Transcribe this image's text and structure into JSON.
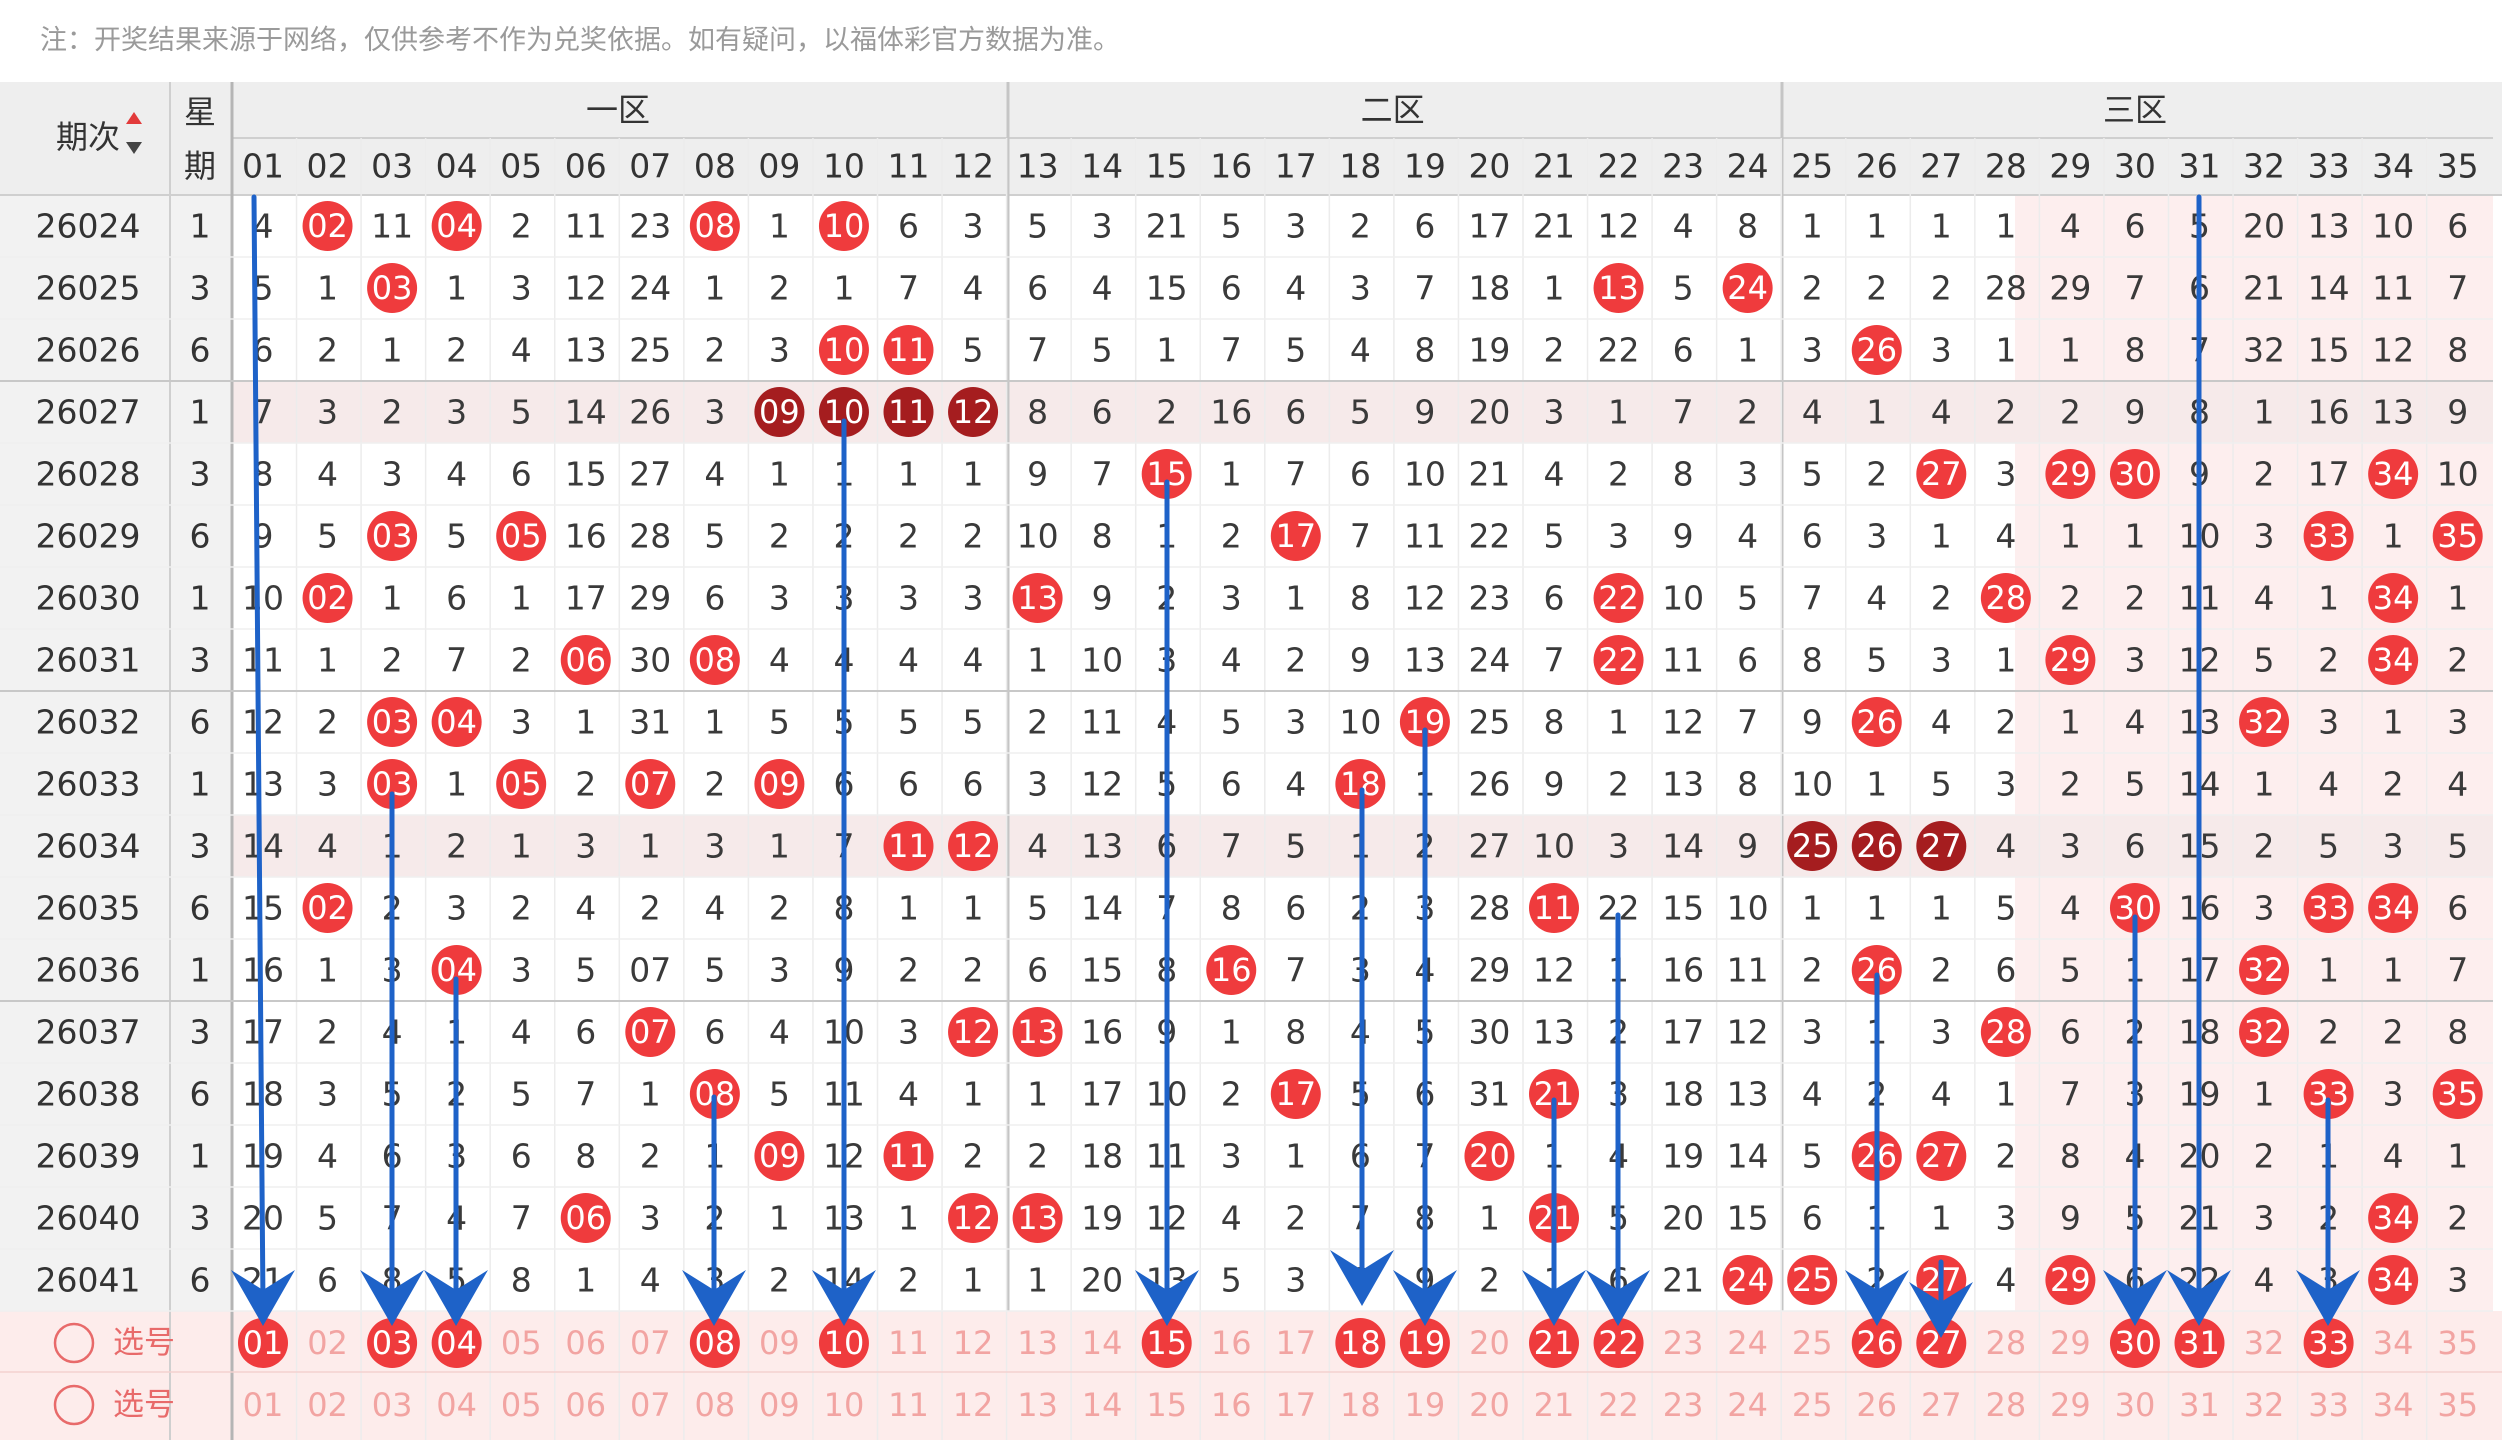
{
  "note": "注：开奖结果来源于网络，仅供参考不作为兑奖依据。如有疑问，以福体彩官方数据为准。",
  "header": {
    "period_label": "期次",
    "week_label": "星期",
    "zones": [
      "一区",
      "二区",
      "三区"
    ],
    "columns": [
      "01",
      "02",
      "03",
      "04",
      "05",
      "06",
      "07",
      "08",
      "09",
      "10",
      "11",
      "12",
      "13",
      "14",
      "15",
      "16",
      "17",
      "18",
      "19",
      "20",
      "21",
      "22",
      "23",
      "24",
      "25",
      "26",
      "27",
      "28",
      "29",
      "30",
      "31",
      "32",
      "33",
      "34",
      "35"
    ]
  },
  "colors": {
    "ball": "#ef3b3d",
    "ball_dark": "#a51d1f",
    "arrow": "#1e62c8",
    "miss_text": "#3a3a3a",
    "header_bg": "#eeeeee",
    "zone3_band": "#fdeeee",
    "select_bg": "#fdeceb"
  },
  "rows": [
    {
      "period": "26024",
      "week": "1",
      "cells": [
        "4",
        "02",
        "11",
        "04",
        "2",
        "11",
        "23",
        "08",
        "1",
        "10",
        "6",
        "3",
        "5",
        "3",
        "21",
        "5",
        "3",
        "2",
        "6",
        "17",
        "21",
        "12",
        "4",
        "8",
        "1",
        "1",
        "1",
        "1",
        "4",
        "6",
        "5",
        "20",
        "13",
        "10",
        "6"
      ]
    },
    {
      "period": "26025",
      "week": "3",
      "cells": [
        "5",
        "1",
        "03",
        "1",
        "3",
        "12",
        "24",
        "1",
        "2",
        "1",
        "7",
        "4",
        "6",
        "4",
        "15",
        "6",
        "4",
        "3",
        "7",
        "18",
        "1",
        "13",
        "5",
        "24",
        "2",
        "2",
        "2",
        "28",
        "29",
        "7",
        "6",
        "21",
        "14",
        "11",
        "7"
      ]
    },
    {
      "period": "26026",
      "week": "6",
      "cells": [
        "6",
        "2",
        "1",
        "2",
        "4",
        "13",
        "25",
        "2",
        "3",
        "10",
        "11",
        "5",
        "7",
        "5",
        "1",
        "7",
        "5",
        "4",
        "8",
        "19",
        "2",
        "22",
        "6",
        "1",
        "3",
        "26",
        "3",
        "1",
        "1",
        "8",
        "7",
        "32",
        "15",
        "12",
        "8"
      ]
    },
    {
      "period": "26027",
      "week": "1",
      "cells": [
        "7",
        "3",
        "2",
        "3",
        "5",
        "14",
        "26",
        "3",
        "09",
        "10",
        "11",
        "12",
        "8",
        "6",
        "2",
        "16",
        "6",
        "5",
        "9",
        "20",
        "3",
        "1",
        "7",
        "2",
        "4",
        "1",
        "4",
        "2",
        "2",
        "9",
        "8",
        "1",
        "16",
        "13",
        "9"
      ]
    },
    {
      "period": "26028",
      "week": "3",
      "cells": [
        "8",
        "4",
        "3",
        "4",
        "6",
        "15",
        "27",
        "4",
        "1",
        "1",
        "1",
        "1",
        "9",
        "7",
        "15",
        "1",
        "7",
        "6",
        "10",
        "21",
        "4",
        "2",
        "8",
        "3",
        "5",
        "2",
        "27",
        "3",
        "29",
        "30",
        "9",
        "2",
        "17",
        "34",
        "10"
      ]
    },
    {
      "period": "26029",
      "week": "6",
      "cells": [
        "9",
        "5",
        "03",
        "5",
        "05",
        "16",
        "28",
        "5",
        "2",
        "2",
        "2",
        "2",
        "10",
        "8",
        "1",
        "2",
        "17",
        "7",
        "11",
        "22",
        "5",
        "3",
        "9",
        "4",
        "6",
        "3",
        "1",
        "4",
        "1",
        "1",
        "10",
        "3",
        "33",
        "1",
        "35"
      ]
    },
    {
      "period": "26030",
      "week": "1",
      "cells": [
        "10",
        "02",
        "1",
        "6",
        "1",
        "17",
        "29",
        "6",
        "3",
        "3",
        "3",
        "3",
        "13",
        "9",
        "2",
        "3",
        "1",
        "8",
        "12",
        "23",
        "6",
        "22",
        "10",
        "5",
        "7",
        "4",
        "2",
        "28",
        "2",
        "2",
        "11",
        "4",
        "1",
        "34",
        "1"
      ]
    },
    {
      "period": "26031",
      "week": "3",
      "cells": [
        "11",
        "1",
        "2",
        "7",
        "2",
        "06",
        "30",
        "08",
        "4",
        "4",
        "4",
        "4",
        "1",
        "10",
        "3",
        "4",
        "2",
        "9",
        "13",
        "24",
        "7",
        "22",
        "11",
        "6",
        "8",
        "5",
        "3",
        "1",
        "29",
        "3",
        "12",
        "5",
        "2",
        "34",
        "2"
      ]
    },
    {
      "period": "26032",
      "week": "6",
      "cells": [
        "12",
        "2",
        "03",
        "04",
        "3",
        "1",
        "31",
        "1",
        "5",
        "5",
        "5",
        "5",
        "2",
        "11",
        "4",
        "5",
        "3",
        "10",
        "19",
        "25",
        "8",
        "1",
        "12",
        "7",
        "9",
        "26",
        "4",
        "2",
        "1",
        "4",
        "13",
        "32",
        "3",
        "1",
        "3"
      ]
    },
    {
      "period": "26033",
      "week": "1",
      "cells": [
        "13",
        "3",
        "03",
        "1",
        "05",
        "2",
        "07",
        "2",
        "09",
        "6",
        "6",
        "6",
        "3",
        "12",
        "5",
        "6",
        "4",
        "18",
        "1",
        "26",
        "9",
        "2",
        "13",
        "8",
        "10",
        "1",
        "5",
        "3",
        "2",
        "5",
        "14",
        "1",
        "4",
        "2",
        "4"
      ]
    },
    {
      "period": "26034",
      "week": "3",
      "cells": [
        "14",
        "4",
        "1",
        "2",
        "1",
        "3",
        "1",
        "3",
        "1",
        "7",
        "11",
        "12",
        "4",
        "13",
        "6",
        "7",
        "5",
        "1",
        "2",
        "27",
        "10",
        "3",
        "14",
        "9",
        "25",
        "26",
        "27",
        "4",
        "3",
        "6",
        "15",
        "2",
        "5",
        "3",
        "5"
      ]
    },
    {
      "period": "26035",
      "week": "6",
      "cells": [
        "15",
        "02",
        "2",
        "3",
        "2",
        "4",
        "2",
        "4",
        "2",
        "8",
        "1",
        "1",
        "5",
        "14",
        "7",
        "8",
        "6",
        "2",
        "3",
        "28",
        "11",
        "22",
        "15",
        "10",
        "1",
        "1",
        "1",
        "5",
        "4",
        "30",
        "16",
        "3",
        "33",
        "34",
        "6"
      ]
    },
    {
      "period": "26036",
      "week": "1",
      "cells": [
        "16",
        "1",
        "3",
        "04",
        "3",
        "5",
        "07",
        "5",
        "3",
        "9",
        "2",
        "2",
        "6",
        "15",
        "8",
        "16",
        "7",
        "3",
        "4",
        "29",
        "12",
        "1",
        "16",
        "11",
        "2",
        "26",
        "2",
        "6",
        "5",
        "1",
        "17",
        "32",
        "1",
        "1",
        "7"
      ]
    },
    {
      "period": "26037",
      "week": "3",
      "cells": [
        "17",
        "2",
        "4",
        "1",
        "4",
        "6",
        "07",
        "6",
        "4",
        "10",
        "3",
        "12",
        "13",
        "16",
        "9",
        "1",
        "8",
        "4",
        "5",
        "30",
        "13",
        "2",
        "17",
        "12",
        "3",
        "1",
        "3",
        "28",
        "6",
        "2",
        "18",
        "32",
        "2",
        "2",
        "8"
      ]
    },
    {
      "period": "26038",
      "week": "6",
      "cells": [
        "18",
        "3",
        "5",
        "2",
        "5",
        "7",
        "1",
        "08",
        "5",
        "11",
        "4",
        "1",
        "1",
        "17",
        "10",
        "2",
        "17",
        "5",
        "6",
        "31",
        "21",
        "3",
        "18",
        "13",
        "4",
        "2",
        "4",
        "1",
        "7",
        "3",
        "19",
        "1",
        "33",
        "3",
        "35"
      ]
    },
    {
      "period": "26039",
      "week": "1",
      "cells": [
        "19",
        "4",
        "6",
        "3",
        "6",
        "8",
        "2",
        "1",
        "09",
        "12",
        "11",
        "2",
        "2",
        "18",
        "11",
        "3",
        "1",
        "6",
        "7",
        "20",
        "1",
        "4",
        "19",
        "14",
        "5",
        "26",
        "27",
        "2",
        "8",
        "4",
        "20",
        "2",
        "1",
        "4",
        "1"
      ]
    },
    {
      "period": "26040",
      "week": "3",
      "cells": [
        "20",
        "5",
        "7",
        "4",
        "7",
        "06",
        "3",
        "2",
        "1",
        "13",
        "1",
        "12",
        "13",
        "19",
        "12",
        "4",
        "2",
        "7",
        "8",
        "1",
        "21",
        "5",
        "20",
        "15",
        "6",
        "1",
        "1",
        "3",
        "9",
        "5",
        "21",
        "3",
        "2",
        "34",
        "2"
      ]
    },
    {
      "period": "26041",
      "week": "6",
      "cells": [
        "21",
        "6",
        "8",
        "5",
        "8",
        "1",
        "4",
        "3",
        "2",
        "14",
        "2",
        "1",
        "1",
        "20",
        "13",
        "5",
        "3",
        "8",
        "9",
        "2",
        "1",
        "6",
        "21",
        "24",
        "25",
        "2",
        "27",
        "4",
        "29",
        "6",
        "22",
        "4",
        "3",
        "34",
        "3"
      ]
    }
  ],
  "hits": [
    [
      1,
      3,
      7,
      9
    ],
    [
      2,
      21,
      23
    ],
    [
      9,
      10,
      25
    ],
    [],
    [
      14,
      26,
      28,
      29,
      33
    ],
    [
      2,
      4,
      16,
      32,
      34
    ],
    [
      1,
      12,
      21,
      27,
      33
    ],
    [
      5,
      7,
      21,
      28,
      33
    ],
    [
      2,
      3,
      18,
      25,
      31
    ],
    [
      2,
      4,
      6,
      8,
      17
    ],
    [
      10,
      11,
      24,
      25,
      26
    ],
    [
      1,
      20,
      29,
      32,
      33
    ],
    [
      3,
      15,
      25,
      31
    ],
    [
      6,
      11,
      12,
      27,
      31
    ],
    [
      7,
      16,
      20,
      32,
      34
    ],
    [
      8,
      10,
      19,
      25,
      26
    ],
    [
      5,
      11,
      12,
      20,
      33
    ],
    [
      23,
      24,
      26,
      28,
      33
    ]
  ],
  "dark_groups": [
    {
      "row": 3,
      "cols": [
        8,
        9,
        10,
        11
      ]
    },
    {
      "row": 10,
      "cols": [
        24,
        25,
        26
      ]
    }
  ],
  "band_rows": [
    3,
    10
  ],
  "select_rows": [
    {
      "label": "选号",
      "selected": [
        "01",
        "03",
        "04",
        "08",
        "10",
        "15",
        "18",
        "19",
        "21",
        "22",
        "26",
        "27",
        "30",
        "31",
        "33"
      ]
    },
    {
      "label": "选号",
      "selected": []
    }
  ]
}
